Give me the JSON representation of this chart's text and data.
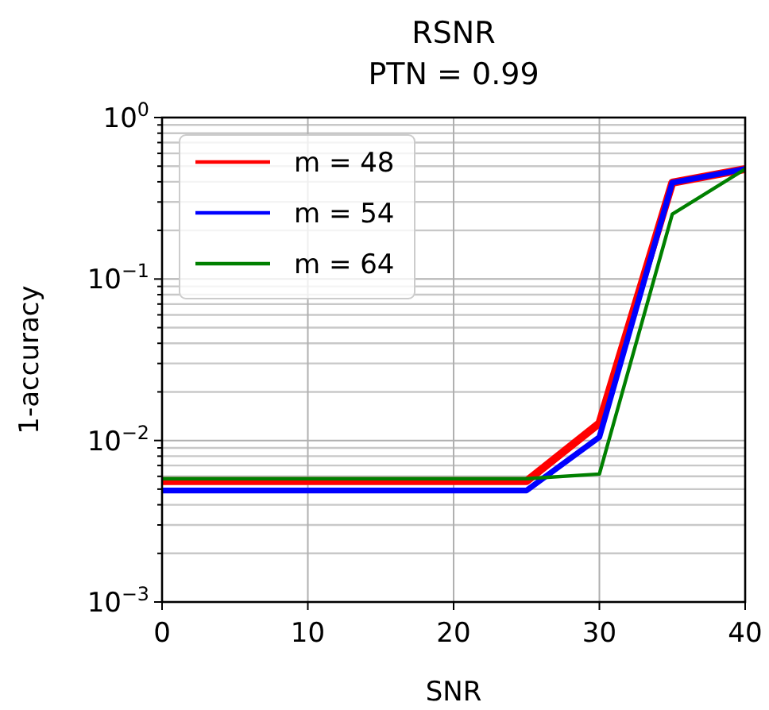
{
  "chart_data": {
    "type": "line",
    "title": "RSNR",
    "subtitle": "PTN = 0.99",
    "xlabel": "SNR",
    "ylabel": "1-accuracy",
    "x": [
      0,
      5,
      10,
      15,
      20,
      25,
      30,
      35,
      40
    ],
    "series": [
      {
        "name": "m = 48",
        "color": "#ff0000",
        "values": [
          0.0056,
          0.0056,
          0.0056,
          0.0056,
          0.0056,
          0.0056,
          0.0128,
          0.395,
          0.48
        ]
      },
      {
        "name": "m = 54",
        "color": "#0000ff",
        "values": [
          0.0049,
          0.0049,
          0.0049,
          0.0049,
          0.0049,
          0.0049,
          0.0105,
          0.395,
          0.48
        ]
      },
      {
        "name": "m = 64",
        "color": "#008000",
        "values": [
          0.0058,
          0.0058,
          0.0058,
          0.0058,
          0.0058,
          0.0058,
          0.0062,
          0.252,
          0.48
        ]
      }
    ],
    "xlim": [
      0,
      40
    ],
    "xticks": [
      0,
      10,
      20,
      30,
      40
    ],
    "ylim": [
      0.001,
      1
    ],
    "yticks": [
      {
        "value": 0.001,
        "label": "10$^{−3}$"
      },
      {
        "value": 0.002,
        "label": null
      },
      {
        "value": 0.003,
        "label": null
      },
      {
        "value": 0.004,
        "label": null
      },
      {
        "value": 0.005,
        "label": null
      },
      {
        "value": 0.006,
        "label": null
      },
      {
        "value": 0.007,
        "label": null
      },
      {
        "value": 0.008,
        "label": null
      },
      {
        "value": 0.009,
        "label": null
      },
      {
        "value": 0.01,
        "label": "10$^{−2}$"
      },
      {
        "value": 0.02,
        "label": null
      },
      {
        "value": 0.03,
        "label": null
      },
      {
        "value": 0.04,
        "label": null
      },
      {
        "value": 0.05,
        "label": null
      },
      {
        "value": 0.06,
        "label": null
      },
      {
        "value": 0.07,
        "label": null
      },
      {
        "value": 0.08,
        "label": null
      },
      {
        "value": 0.09,
        "label": null
      },
      {
        "value": 0.1,
        "label": "10$^{−1}$"
      },
      {
        "value": 0.2,
        "label": null
      },
      {
        "value": 0.3,
        "label": null
      },
      {
        "value": 0.4,
        "label": null
      },
      {
        "value": 0.5,
        "label": null
      },
      {
        "value": 0.6,
        "label": null
      },
      {
        "value": 0.7,
        "label": null
      },
      {
        "value": 0.8,
        "label": null
      },
      {
        "value": 0.9,
        "label": null
      },
      {
        "value": 1,
        "label": "10$^{0}$"
      }
    ],
    "log": "y",
    "grid": true,
    "legend": "top left",
    "marker": "none",
    "line_style": "solid"
  }
}
